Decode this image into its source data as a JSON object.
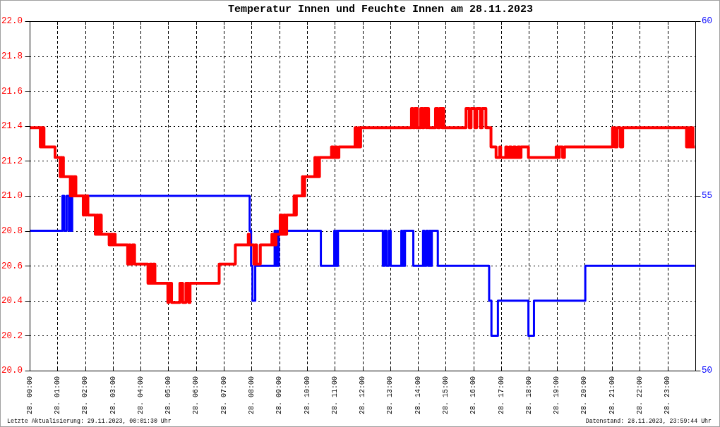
{
  "chart_data": {
    "type": "step",
    "title": "Temperatur Innen und Feuchte Innen am 28.11.2023",
    "annotations": [
      "Letzte Aktualisierung: 29.11.2023, 00:01:30 Uhr",
      "Datenstand: 28.11.2023, 23:59:44 Uhr"
    ],
    "xlim": [
      "2023-11-28T00:00",
      "2023-11-29T00:00"
    ],
    "xticks": [
      {
        "value": "2023-11-28T00:00",
        "label": "28. 00:00"
      },
      {
        "value": "2023-11-28T01:00",
        "label": "28. 01:00"
      },
      {
        "value": "2023-11-28T02:00",
        "label": "28. 02:00"
      },
      {
        "value": "2023-11-28T03:00",
        "label": "28. 03:00"
      },
      {
        "value": "2023-11-28T04:00",
        "label": "28. 04:00"
      },
      {
        "value": "2023-11-28T05:00",
        "label": "28. 05:00"
      },
      {
        "value": "2023-11-28T06:00",
        "label": "28. 06:00"
      },
      {
        "value": "2023-11-28T07:00",
        "label": "28. 07:00"
      },
      {
        "value": "2023-11-28T08:00",
        "label": "28. 08:00"
      },
      {
        "value": "2023-11-28T09:00",
        "label": "28. 09:00"
      },
      {
        "value": "2023-11-28T10:00",
        "label": "28. 10:00"
      },
      {
        "value": "2023-11-28T11:00",
        "label": "28. 11:00"
      },
      {
        "value": "2023-11-28T12:00",
        "label": "28. 12:00"
      },
      {
        "value": "2023-11-28T13:00",
        "label": "28. 13:00"
      },
      {
        "value": "2023-11-28T14:00",
        "label": "28. 14:00"
      },
      {
        "value": "2023-11-28T15:00",
        "label": "28. 15:00"
      },
      {
        "value": "2023-11-28T16:00",
        "label": "28. 16:00"
      },
      {
        "value": "2023-11-28T17:00",
        "label": "28. 17:00"
      },
      {
        "value": "2023-11-28T18:00",
        "label": "28. 18:00"
      },
      {
        "value": "2023-11-28T19:00",
        "label": "28. 19:00"
      },
      {
        "value": "2023-11-28T20:00",
        "label": "28. 20:00"
      },
      {
        "value": "2023-11-28T21:00",
        "label": "28. 21:00"
      },
      {
        "value": "2023-11-28T22:00",
        "label": "28. 22:00"
      },
      {
        "value": "2023-11-28T23:00",
        "label": "28. 23:00"
      }
    ],
    "ylim": [
      20,
      22
    ],
    "yticks": [
      {
        "value": 20,
        "label": "20.0"
      },
      20.2,
      20.4,
      20.6,
      20.8,
      {
        "value": 21,
        "label": "21.0"
      },
      21.2,
      21.4,
      21.6,
      21.8,
      {
        "value": 22,
        "label": "22.0"
      }
    ],
    "y2lim": [
      50,
      60
    ],
    "y2ticks": [
      50,
      55,
      60
    ],
    "grid": true,
    "series": [
      {
        "color": "#ff0000",
        "x": [
          "2023-11-28T00:00",
          "2023-11-28T00:23",
          "2023-11-28T00:25",
          "2023-11-28T00:26",
          "2023-11-28T00:28",
          "2023-11-28T00:31",
          "2023-11-28T00:55",
          "2023-11-28T01:06",
          "2023-11-28T01:08",
          "2023-11-28T01:10",
          "2023-11-28T01:12",
          "2023-11-28T01:13",
          "2023-11-28T01:28",
          "2023-11-28T01:29",
          "2023-11-28T01:33",
          "2023-11-28T01:35",
          "2023-11-28T01:37",
          "2023-11-28T01:38",
          "2023-11-28T01:40",
          "2023-11-28T01:56",
          "2023-11-28T01:58",
          "2023-11-28T02:01",
          "2023-11-28T02:03",
          "2023-11-28T02:06",
          "2023-11-28T02:22",
          "2023-11-28T02:25",
          "2023-11-28T02:28",
          "2023-11-28T02:31",
          "2023-11-28T02:35",
          "2023-11-28T02:52",
          "2023-11-28T02:55",
          "2023-11-28T02:59",
          "2023-11-28T03:02",
          "2023-11-28T03:05",
          "2023-11-28T03:32",
          "2023-11-28T03:35",
          "2023-11-28T03:38",
          "2023-11-28T03:42",
          "2023-11-28T03:47",
          "2023-11-28T04:16",
          "2023-11-28T04:20",
          "2023-11-28T04:24",
          "2023-11-28T04:27",
          "2023-11-28T04:31",
          "2023-11-28T04:59",
          "2023-11-28T05:01",
          "2023-11-28T05:07",
          "2023-11-28T05:25",
          "2023-11-28T05:31",
          "2023-11-28T05:38",
          "2023-11-28T05:44",
          "2023-11-28T05:47",
          "2023-11-28T06:50",
          "2023-11-28T07:25",
          "2023-11-28T07:53",
          "2023-11-28T07:55",
          "2023-11-28T08:05",
          "2023-11-28T08:08",
          "2023-11-28T08:11",
          "2023-11-28T08:19",
          "2023-11-28T08:44",
          "2023-11-28T08:46",
          "2023-11-28T08:48",
          "2023-11-28T08:50",
          "2023-11-28T08:53",
          "2023-11-28T09:02",
          "2023-11-28T09:06",
          "2023-11-28T09:10",
          "2023-11-28T09:13",
          "2023-11-28T09:16",
          "2023-11-28T09:32",
          "2023-11-28T09:34",
          "2023-11-28T09:37",
          "2023-11-28T09:50",
          "2023-11-28T09:52",
          "2023-11-28T09:55",
          "2023-11-28T10:17",
          "2023-11-28T10:20",
          "2023-11-28T10:23",
          "2023-11-28T10:25",
          "2023-11-28T10:27",
          "2023-11-28T10:53",
          "2023-11-28T10:57",
          "2023-11-28T11:01",
          "2023-11-28T11:05",
          "2023-11-28T11:09",
          "2023-11-28T11:44",
          "2023-11-28T11:47",
          "2023-11-28T11:51",
          "2023-11-28T11:54",
          "2023-11-28T11:56",
          "2023-11-28T13:46",
          "2023-11-28T13:49",
          "2023-11-28T13:53",
          "2023-11-28T13:56",
          "2023-11-28T13:58",
          "2023-11-28T13:59",
          "2023-11-28T14:06",
          "2023-11-28T14:10",
          "2023-11-28T14:13",
          "2023-11-28T14:18",
          "2023-11-28T14:20",
          "2023-11-28T14:23",
          "2023-11-28T14:38",
          "2023-11-28T14:43",
          "2023-11-28T14:47",
          "2023-11-28T14:52",
          "2023-11-28T14:54",
          "2023-11-28T14:56",
          "2023-11-28T15:44",
          "2023-11-28T15:51",
          "2023-11-28T15:55",
          "2023-11-28T16:03",
          "2023-11-28T16:07",
          "2023-11-28T16:15",
          "2023-11-28T16:19",
          "2023-11-28T16:27",
          "2023-11-28T16:38",
          "2023-11-28T16:49",
          "2023-11-28T16:57",
          "2023-11-28T16:59",
          "2023-11-28T17:10",
          "2023-11-28T17:13",
          "2023-11-28T17:18",
          "2023-11-28T17:22",
          "2023-11-28T17:27",
          "2023-11-28T17:31",
          "2023-11-28T17:36",
          "2023-11-28T17:40",
          "2023-11-28T17:43",
          "2023-11-28T17:59",
          "2023-11-28T18:59",
          "2023-11-28T19:03",
          "2023-11-28T19:06",
          "2023-11-28T19:13",
          "2023-11-28T19:17",
          "2023-11-28T21:01",
          "2023-11-28T21:06",
          "2023-11-28T21:11",
          "2023-11-28T21:18",
          "2023-11-28T21:23",
          "2023-11-28T23:41",
          "2023-11-28T23:45",
          "2023-11-28T23:48",
          "2023-11-28T23:51",
          "2023-11-28T23:55",
          "2023-11-28T23:59"
        ],
        "values": [
          21.39,
          21.28,
          21.39,
          21.28,
          21.39,
          21.28,
          21.22,
          21.11,
          21.22,
          21.11,
          21.22,
          21.11,
          21.0,
          21.11,
          21.0,
          21.11,
          21.0,
          21.11,
          21.0,
          20.89,
          21.0,
          20.89,
          21.0,
          20.89,
          20.78,
          20.89,
          20.78,
          20.89,
          20.78,
          20.72,
          20.78,
          20.72,
          20.78,
          20.72,
          20.61,
          20.72,
          20.61,
          20.72,
          20.61,
          20.5,
          20.61,
          20.5,
          20.61,
          20.5,
          20.39,
          20.5,
          20.39,
          20.5,
          20.39,
          20.5,
          20.39,
          20.5,
          20.61,
          20.72,
          20.78,
          20.72,
          20.61,
          20.72,
          20.61,
          20.72,
          20.78,
          20.72,
          20.78,
          20.72,
          20.78,
          20.89,
          20.78,
          20.89,
          20.78,
          20.89,
          21.0,
          20.89,
          21.0,
          21.11,
          21.0,
          21.11,
          21.22,
          21.11,
          21.22,
          21.11,
          21.22,
          21.28,
          21.22,
          21.28,
          21.22,
          21.28,
          21.39,
          21.28,
          21.39,
          21.28,
          21.39,
          21.5,
          21.39,
          21.5,
          21.39,
          21.5,
          21.39,
          21.5,
          21.39,
          21.5,
          21.39,
          21.5,
          21.39,
          21.5,
          21.39,
          21.5,
          21.39,
          21.5,
          21.39,
          21.5,
          21.39,
          21.5,
          21.39,
          21.5,
          21.39,
          21.5,
          21.39,
          21.28,
          21.22,
          21.28,
          21.22,
          21.28,
          21.22,
          21.28,
          21.22,
          21.28,
          21.22,
          21.28,
          21.22,
          21.28,
          21.22,
          21.28,
          21.22,
          21.28,
          21.22,
          21.28,
          21.39,
          21.28,
          21.39,
          21.28,
          21.39,
          21.28,
          21.39,
          21.28,
          21.39,
          21.28,
          21.28
        ]
      },
      {
        "color": "#0000ff",
        "axis": "y2",
        "x": [
          "2023-11-28T00:00",
          "2023-11-28T01:11",
          "2023-11-28T01:15",
          "2023-11-28T01:20",
          "2023-11-28T01:25",
          "2023-11-28T01:28",
          "2023-11-28T01:30",
          "2023-11-28T01:32",
          "2023-11-28T07:56",
          "2023-11-28T07:59",
          "2023-11-28T08:02",
          "2023-11-28T08:08",
          "2023-11-28T08:50",
          "2023-11-28T08:52",
          "2023-11-28T08:55",
          "2023-11-28T08:56",
          "2023-11-28T08:59",
          "2023-11-28T10:30",
          "2023-11-28T10:59",
          "2023-11-28T11:01",
          "2023-11-28T11:04",
          "2023-11-28T11:05",
          "2023-11-28T11:07",
          "2023-11-28T12:44",
          "2023-11-28T12:48",
          "2023-11-28T12:52",
          "2023-11-28T12:57",
          "2023-11-28T13:01",
          "2023-11-28T13:24",
          "2023-11-28T13:26",
          "2023-11-28T13:29",
          "2023-11-28T13:31",
          "2023-11-28T13:32",
          "2023-11-28T13:50",
          "2023-11-28T14:11",
          "2023-11-28T14:14",
          "2023-11-28T14:18",
          "2023-11-28T14:22",
          "2023-11-28T14:25",
          "2023-11-28T14:28",
          "2023-11-28T14:30",
          "2023-11-28T14:43",
          "2023-11-28T16:34",
          "2023-11-28T16:39",
          "2023-11-28T16:53",
          "2023-11-28T17:59",
          "2023-11-28T18:11",
          "2023-11-28T20:02",
          "2023-11-28T23:59"
        ],
        "values": [
          54,
          55,
          54,
          55,
          54,
          55,
          54,
          55,
          54,
          53,
          52,
          53,
          54,
          53,
          54,
          53,
          54,
          53,
          54,
          53,
          54,
          53,
          54,
          53,
          54,
          53,
          54,
          53,
          54,
          53,
          54,
          53,
          54,
          53,
          54,
          53,
          54,
          53,
          54,
          53,
          54,
          53,
          52,
          51,
          52,
          51,
          52,
          53,
          53
        ]
      }
    ]
  }
}
